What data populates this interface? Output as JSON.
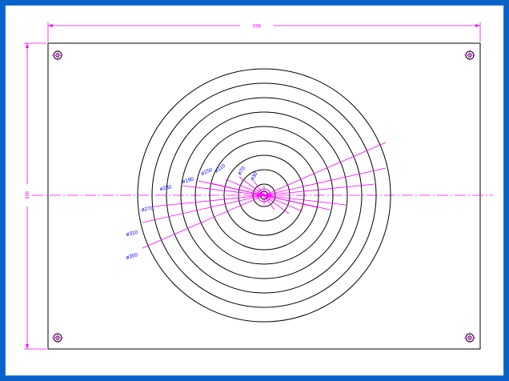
{
  "drawing": {
    "width_dim_label": "596",
    "height_dim_label": "396",
    "colors": {
      "frame": "#0a62c9",
      "outline": "#000000",
      "dimension": "#ff00ff",
      "label": "#0000ff"
    },
    "circle_labels": [
      "ø30",
      "ø70",
      "ø110",
      "ø150",
      "ø190",
      "ø230",
      "ø270",
      "ø310",
      "ø350"
    ],
    "corner_holes": [
      "top-left",
      "top-right",
      "bottom-left",
      "bottom-right"
    ]
  }
}
